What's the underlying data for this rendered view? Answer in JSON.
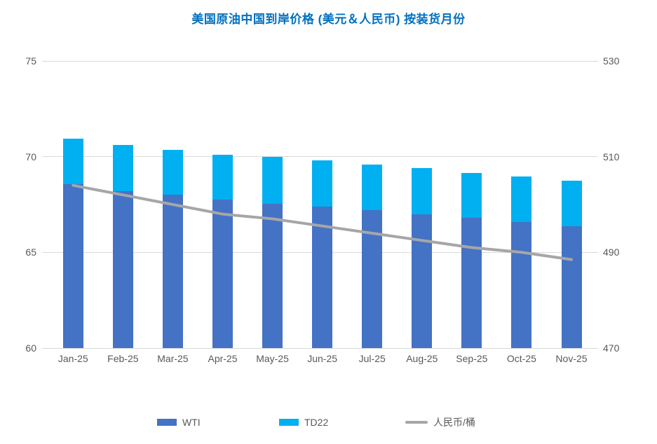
{
  "title": "美国原油中国到岸价格 (美元＆人民币) 按装货月份",
  "colors": {
    "title": "#0070C0",
    "wti_bar": "#4472C4",
    "td22_bar": "#00B0F0",
    "rmb_line": "#A6A6A6",
    "gridline": "#D9D9D9",
    "axis_text": "#595959",
    "background": "#FFFFFF"
  },
  "chart_data": {
    "type": "combo-stacked-bar-line",
    "categories": [
      "Jan-25",
      "Feb-25",
      "Mar-25",
      "Apr-25",
      "May-25",
      "Jun-25",
      "Jul-25",
      "Aug-25",
      "Sep-25",
      "Oct-25",
      "Nov-25"
    ],
    "series": [
      {
        "name": "WTI",
        "type": "bar",
        "stack": "usd",
        "axis": "left",
        "values": [
          68.55,
          68.2,
          68.0,
          67.75,
          67.55,
          67.4,
          67.2,
          67.0,
          66.8,
          66.6,
          66.35
        ]
      },
      {
        "name": "TD22",
        "type": "bar",
        "stack": "usd",
        "axis": "left",
        "values": [
          2.4,
          2.4,
          2.35,
          2.35,
          2.45,
          2.4,
          2.4,
          2.4,
          2.35,
          2.35,
          2.4
        ]
      },
      {
        "name": "人民币/桶",
        "type": "line",
        "axis": "right",
        "values": [
          504,
          502,
          500,
          498,
          497,
          495.5,
          494,
          492.5,
          491,
          490,
          488.5
        ]
      }
    ],
    "stacked_bar_totals": [
      70.95,
      70.6,
      70.35,
      70.1,
      70.0,
      69.8,
      69.6,
      69.4,
      69.15,
      68.95,
      68.75
    ],
    "left_axis": {
      "min": 60,
      "max": 75,
      "ticks": [
        "75",
        "70",
        "65",
        "60"
      ],
      "tick_values": [
        75,
        70,
        65,
        60
      ]
    },
    "right_axis": {
      "min": 470,
      "max": 530,
      "ticks": [
        "530",
        "510",
        "490",
        "470"
      ],
      "tick_values": [
        530,
        510,
        490,
        470
      ]
    },
    "grid": true,
    "legend_position": "bottom",
    "legend_entries": [
      "WTI",
      "TD22",
      "人民币/桶"
    ]
  }
}
